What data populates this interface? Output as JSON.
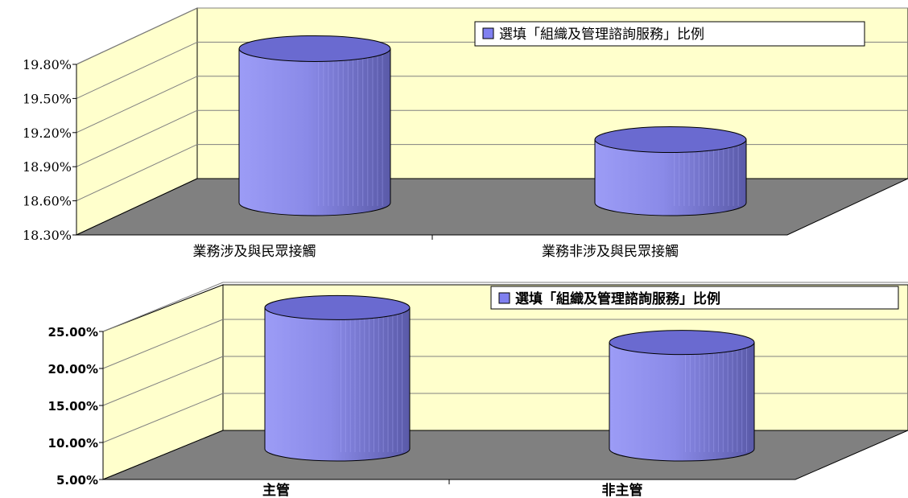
{
  "chart_data": [
    {
      "type": "bar",
      "categories": [
        "業務涉及與民眾接觸",
        "業務非涉及與民眾接觸"
      ],
      "series": [
        {
          "name": "選填「組織及管理諮詢服務」比例",
          "values": [
            19.75,
            18.95
          ]
        }
      ],
      "yticks": [
        "18.30%",
        "18.60%",
        "18.90%",
        "19.20%",
        "19.50%",
        "19.80%"
      ],
      "ylim": [
        18.3,
        19.8
      ],
      "grid": true,
      "legend": "top-right",
      "colors": {
        "bar": "#8080f0",
        "wall": "#ffffcc",
        "floor": "#808080"
      }
    },
    {
      "type": "bar",
      "categories": [
        "主管",
        "非主管"
      ],
      "series": [
        {
          "name": "選填「組織及管理諮詢服務」比例",
          "values": [
            25.7,
            21.0
          ]
        }
      ],
      "yticks": [
        "5.00%",
        "10.00%",
        "15.00%",
        "20.00%",
        "25.00%"
      ],
      "ylim": [
        5,
        25
      ],
      "grid": true,
      "legend": "top-right",
      "colors": {
        "bar": "#8080f0",
        "wall": "#ffffcc",
        "floor": "#808080"
      }
    }
  ]
}
